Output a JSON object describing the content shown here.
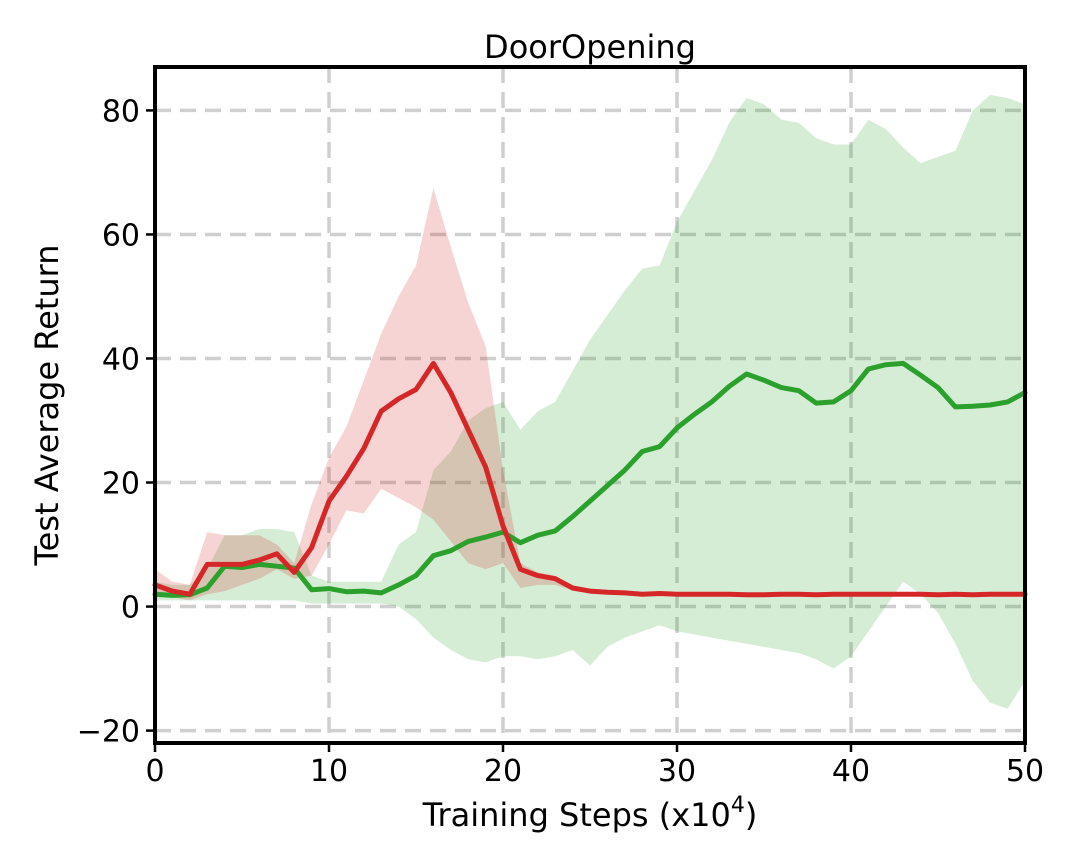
{
  "chart_data": {
    "type": "line",
    "title": "DoorOpening",
    "xlabel": "Training Steps (x10",
    "xlabel_exponent": "4",
    "xlabel_suffix": ")",
    "ylabel": "Test Average Return",
    "xlim": [
      0,
      50
    ],
    "ylim": [
      -22,
      87
    ],
    "xticks": [
      0,
      10,
      20,
      30,
      40,
      50
    ],
    "yticks": [
      -20,
      0,
      20,
      40,
      60,
      80
    ],
    "ytick_labels": [
      "−20",
      "0",
      "20",
      "40",
      "60",
      "80"
    ],
    "grid": true,
    "legend": "none",
    "x": [
      0,
      1,
      2,
      3,
      4,
      5,
      6,
      7,
      8,
      9,
      10,
      11,
      12,
      13,
      14,
      15,
      16,
      17,
      18,
      19,
      20,
      21,
      22,
      23,
      24,
      25,
      26,
      27,
      28,
      29,
      30,
      31,
      32,
      33,
      34,
      35,
      36,
      37,
      38,
      39,
      40,
      41,
      42,
      43,
      44,
      45,
      46,
      47,
      48,
      49,
      50
    ],
    "series": [
      {
        "color": "#2ca02c",
        "band_color": "#2ca02c",
        "values": [
          2.0,
          1.8,
          1.9,
          3.0,
          6.5,
          6.3,
          6.8,
          6.5,
          6.2,
          2.7,
          2.9,
          2.4,
          2.5,
          2.2,
          3.5,
          5.0,
          8.2,
          9.0,
          10.5,
          11.2,
          12.0,
          10.3,
          11.5,
          12.2,
          14.5,
          17.0,
          19.5,
          22.0,
          25.0,
          25.8,
          28.8,
          31.0,
          33.0,
          35.5,
          37.5,
          36.5,
          35.3,
          34.8,
          32.8,
          33.0,
          34.8,
          38.3,
          39.0,
          39.2,
          37.3,
          35.3,
          32.2,
          32.3,
          32.5,
          33.0,
          34.5
        ],
        "upper": [
          4.0,
          3.5,
          3.5,
          6.0,
          11.5,
          11.5,
          12.5,
          12.5,
          12.0,
          5.0,
          4.0,
          4.0,
          4.0,
          4.0,
          10.0,
          12.0,
          22.0,
          25.0,
          30.0,
          32.0,
          33.0,
          28.5,
          31.5,
          33.0,
          38.0,
          43.0,
          47.0,
          51.0,
          54.5,
          55.0,
          62.0,
          67.0,
          72.0,
          78.0,
          82.0,
          81.0,
          78.5,
          78.0,
          75.5,
          74.5,
          74.5,
          78.5,
          77.0,
          74.0,
          71.5,
          72.5,
          73.5,
          80.0,
          82.5,
          82.0,
          81.0
        ],
        "lower": [
          1.0,
          1.0,
          1.0,
          1.0,
          1.0,
          1.0,
          1.0,
          1.0,
          1.0,
          0.5,
          0.5,
          0.5,
          0.5,
          0.5,
          0.0,
          -2.0,
          -5.0,
          -7.0,
          -8.5,
          -9.0,
          -8.0,
          -8.0,
          -8.5,
          -8.0,
          -7.0,
          -9.5,
          -6.5,
          -5.0,
          -4.0,
          -3.0,
          -4.0,
          -4.5,
          -5.0,
          -5.5,
          -6.0,
          -6.5,
          -7.0,
          -7.5,
          -8.5,
          -10.0,
          -8.0,
          -4.0,
          0.0,
          4.0,
          2.0,
          -1.0,
          -6.0,
          -12.0,
          -15.5,
          -16.5,
          -12.0
        ]
      },
      {
        "color": "#d62728",
        "band_color": "#d62728",
        "values": [
          3.5,
          2.5,
          2.0,
          6.8,
          6.8,
          6.8,
          7.5,
          8.5,
          5.5,
          9.5,
          17.0,
          21.0,
          25.5,
          31.5,
          33.5,
          35.0,
          39.2,
          34.5,
          28.5,
          22.5,
          13.0,
          6.0,
          5.0,
          4.5,
          3.0,
          2.5,
          2.3,
          2.2,
          2.0,
          2.1,
          2.0,
          2.0,
          2.0,
          2.0,
          1.9,
          1.9,
          2.0,
          2.0,
          1.9,
          2.0,
          2.0,
          2.0,
          2.0,
          2.0,
          2.0,
          1.9,
          2.0,
          1.9,
          2.0,
          2.0,
          2.0
        ],
        "upper": [
          6.0,
          4.0,
          3.5,
          12.0,
          11.5,
          11.5,
          11.5,
          10.0,
          7.0,
          16.5,
          24.0,
          29.0,
          36.5,
          44.0,
          50.0,
          55.0,
          67.5,
          58.0,
          49.0,
          42.0,
          22.0,
          7.0,
          5.5,
          5.0,
          3.3,
          2.8,
          2.5,
          2.4,
          2.2,
          2.3,
          2.2,
          2.2,
          2.2,
          2.2,
          2.1,
          2.1,
          2.2,
          2.2,
          2.1,
          2.2,
          2.2,
          2.2,
          2.2,
          2.2,
          2.2,
          2.1,
          2.2,
          2.1,
          2.2,
          2.2,
          2.2
        ],
        "lower": [
          1.5,
          1.5,
          1.0,
          2.0,
          2.5,
          3.5,
          4.5,
          6.0,
          4.5,
          5.0,
          10.0,
          15.5,
          15.0,
          19.0,
          17.5,
          16.0,
          14.0,
          10.5,
          7.0,
          6.0,
          7.0,
          3.0,
          3.5,
          3.5,
          2.6,
          2.2,
          2.1,
          2.0,
          1.8,
          1.9,
          1.8,
          1.8,
          1.8,
          1.8,
          1.7,
          1.7,
          1.8,
          1.8,
          1.7,
          1.8,
          1.8,
          1.8,
          1.8,
          1.8,
          1.8,
          1.7,
          1.8,
          1.7,
          1.8,
          1.8,
          1.8
        ]
      }
    ]
  }
}
